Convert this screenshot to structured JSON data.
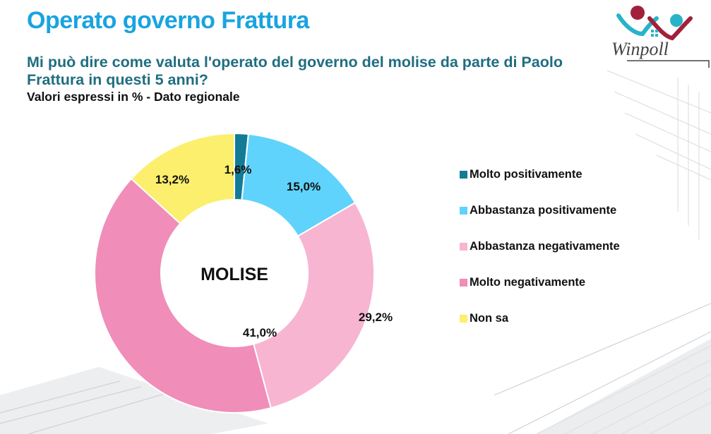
{
  "title": "Operato governo Frattura",
  "question": "Mi può dire come valuta l'operato del governo del molise da parte di Paolo Frattura in questi 5 anni?",
  "subtitle": "Valori espressi in % - Dato regionale",
  "brand": "Winpoll",
  "colors": {
    "title": "#1aa3e0",
    "question": "#1f6e80"
  },
  "chart_data": {
    "type": "pie",
    "center_label": "MOLISE",
    "categories": [
      "Molto positivamente",
      "Abbastanza positivamente",
      "Abbastanza negativamente",
      "Molto negativamente",
      "Non sa"
    ],
    "values": [
      1.6,
      15.0,
      29.2,
      41.0,
      13.2
    ],
    "labels": [
      "1,6%",
      "15,0%",
      "29,2%",
      "41,0%",
      "13,2%"
    ],
    "colors": [
      "#127b96",
      "#5fd3fb",
      "#f7b5d1",
      "#f08db9",
      "#fbef6d"
    ],
    "legend_position": "right"
  }
}
